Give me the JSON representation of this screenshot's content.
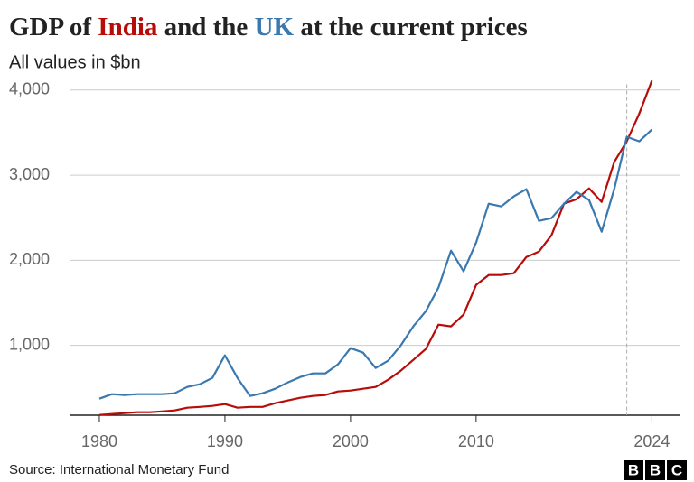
{
  "chart_data": {
    "type": "line",
    "title": "GDP of India and the UK at the current prices",
    "subtitle": "All values in $bn",
    "source": "Source: International Monetary Fund",
    "logo": "BBC",
    "x": [
      1980,
      1981,
      1982,
      1983,
      1984,
      1985,
      1986,
      1987,
      1988,
      1989,
      1990,
      1991,
      1992,
      1993,
      1994,
      1995,
      1996,
      1997,
      1998,
      1999,
      2000,
      2001,
      2002,
      2003,
      2004,
      2005,
      2006,
      2007,
      2008,
      2009,
      2010,
      2011,
      2012,
      2013,
      2014,
      2015,
      2016,
      2017,
      2018,
      2019,
      2020,
      2021,
      2022,
      2023,
      2024
    ],
    "series": [
      {
        "name": "India",
        "color": "#b80c09",
        "values": [
          183,
          194,
          204,
          215,
          215,
          225,
          236,
          268,
          278,
          289,
          310,
          268,
          278,
          278,
          321,
          353,
          385,
          406,
          417,
          459,
          470,
          491,
          512,
          597,
          703,
          830,
          958,
          1244,
          1223,
          1361,
          1711,
          1827,
          1827,
          1848,
          2039,
          2103,
          2294,
          2665,
          2718,
          2845,
          2686,
          3153,
          3397,
          3725,
          4110
        ]
      },
      {
        "name": "UK",
        "color": "#3a78b0",
        "values": [
          374,
          427,
          417,
          427,
          427,
          427,
          438,
          512,
          544,
          618,
          883,
          618,
          406,
          438,
          491,
          565,
          629,
          671,
          671,
          777,
          968,
          915,
          735,
          820,
          1000,
          1223,
          1403,
          1679,
          2113,
          1870,
          2209,
          2665,
          2633,
          2750,
          2835,
          2463,
          2495,
          2665,
          2803,
          2707,
          2336,
          2835,
          3450,
          3397,
          3535
        ]
      }
    ],
    "xlim": [
      1977.7,
      2026.2
    ],
    "xticks": [
      1980,
      1990,
      2000,
      2010,
      2024
    ],
    "ylim": [
      180,
      4130
    ],
    "yticks": [
      {
        "value": 1000,
        "label": "1,000"
      },
      {
        "value": 2000,
        "label": "2,000"
      },
      {
        "value": 3000,
        "label": "3,000"
      },
      {
        "value": 4000,
        "label": "4,000"
      }
    ],
    "grid": true,
    "vline": 2022
  }
}
